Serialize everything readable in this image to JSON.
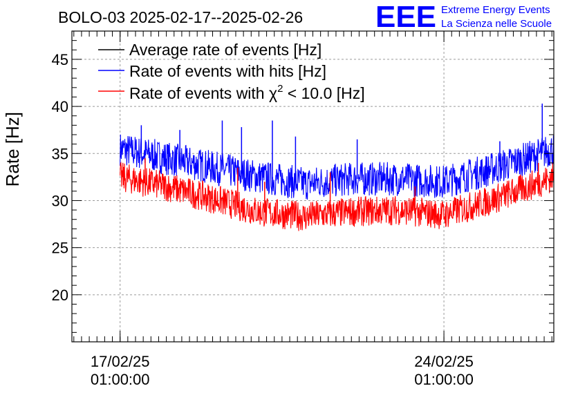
{
  "chart_data": {
    "type": "line",
    "title": "BOLO-03 2025-02-17--2025-02-26",
    "ylabel": "Rate [Hz]",
    "xlabel": "",
    "x_range": [
      "2025-02-16T00:00:00",
      "2025-02-26T10:00:00"
    ],
    "ylim": [
      15,
      48
    ],
    "y_ticks": [
      20,
      25,
      30,
      35,
      40,
      45
    ],
    "x_ticks": [
      {
        "value": "2025-02-17T01:00:00",
        "label_date": "17/02/25",
        "label_time": "01:00:00"
      },
      {
        "value": "2025-02-24T01:00:00",
        "label_date": "24/02/25",
        "label_time": "01:00:00"
      }
    ],
    "grid": true,
    "legend_position": "top-left",
    "series": [
      {
        "name": "Average rate of events [Hz]",
        "color": "#000000",
        "x": [
          "2025-02-17T01:00:00",
          "2025-02-26T10:00:00"
        ],
        "y": [
          null,
          null
        ]
      },
      {
        "name": "Rate of events with hits [Hz]",
        "color": "#0000ff",
        "x": [
          "2025-02-17T01:00:00",
          "2025-02-18T01:00:00",
          "2025-02-19T01:00:00",
          "2025-02-20T01:00:00",
          "2025-02-21T01:00:00",
          "2025-02-22T01:00:00",
          "2025-02-23T01:00:00",
          "2025-02-24T01:00:00",
          "2025-02-25T01:00:00",
          "2025-02-26T01:00:00",
          "2025-02-26T10:00:00"
        ],
        "y": [
          35.5,
          34.5,
          33.5,
          32.5,
          31.8,
          32.3,
          32.3,
          32.0,
          33.3,
          34.8,
          35.5
        ],
        "band": 1.8,
        "spikes": [
          {
            "x": "2025-02-17T12:00:00",
            "y": 38.0
          },
          {
            "x": "2025-02-18T08:00:00",
            "y": 37.5
          },
          {
            "x": "2025-02-19T06:00:00",
            "y": 38.5
          },
          {
            "x": "2025-02-19T16:00:00",
            "y": 37.8
          },
          {
            "x": "2025-02-20T08:00:00",
            "y": 38.5
          },
          {
            "x": "2025-02-20T20:00:00",
            "y": 36.8
          },
          {
            "x": "2025-02-22T04:00:00",
            "y": 36.5
          },
          {
            "x": "2025-02-25T06:00:00",
            "y": 36.3
          },
          {
            "x": "2025-02-26T04:00:00",
            "y": 40.3
          }
        ]
      },
      {
        "name": "Rate of events with χ² < 10.0 [Hz]",
        "name_prefix": "Rate of events with ",
        "name_chi": "χ",
        "name_sup": "2",
        "name_suffix": " < 10.0 [Hz]",
        "color": "#ff0000",
        "x": [
          "2025-02-17T01:00:00",
          "2025-02-18T01:00:00",
          "2025-02-19T01:00:00",
          "2025-02-20T01:00:00",
          "2025-02-21T01:00:00",
          "2025-02-22T01:00:00",
          "2025-02-23T01:00:00",
          "2025-02-24T01:00:00",
          "2025-02-25T01:00:00",
          "2025-02-26T01:00:00",
          "2025-02-26T10:00:00"
        ],
        "y": [
          32.5,
          31.5,
          30.2,
          28.8,
          28.3,
          28.8,
          29.0,
          28.5,
          30.0,
          31.8,
          32.5
        ],
        "band": 1.6,
        "spikes": [
          {
            "x": "2025-02-17T14:00:00",
            "y": 34.5
          },
          {
            "x": "2025-02-19T14:00:00",
            "y": 33.5
          },
          {
            "x": "2025-02-20T04:00:00",
            "y": 32.0
          },
          {
            "x": "2025-02-21T14:00:00",
            "y": 33.0
          },
          {
            "x": "2025-02-23T10:00:00",
            "y": 31.5
          },
          {
            "x": "2025-02-26T02:00:00",
            "y": 34.0
          }
        ]
      }
    ]
  },
  "logo": {
    "mark": "EEE",
    "line1": "Extreme Energy Events",
    "line2": "La Scienza nelle Scuole",
    "color": "#0000ff"
  }
}
